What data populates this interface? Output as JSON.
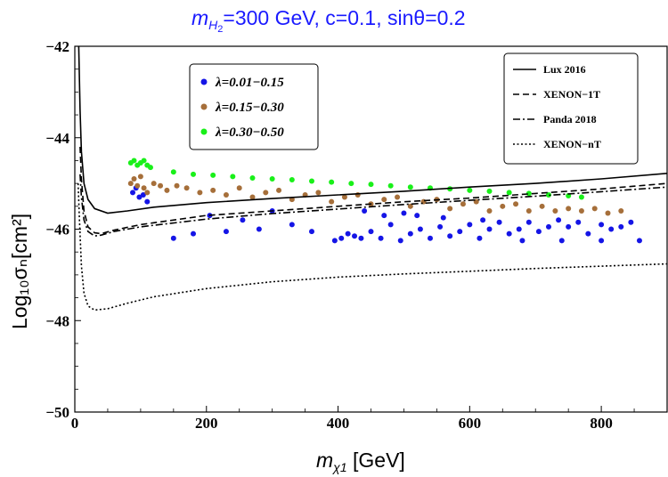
{
  "chart_data": {
    "type": "scatter",
    "title": {
      "prefix": "m",
      "sub": "H",
      "subsub": "2",
      "rest": "=300 GeV, c=0.1, sinθ=0.2"
    },
    "xlabel": {
      "main": "m",
      "sub": "χ1",
      "rest": " [GeV]"
    },
    "ylabel": "Log₁₀σₙ[cm²]",
    "xlim": [
      0,
      900
    ],
    "ylim": [
      -50,
      -42
    ],
    "xticks": [
      0,
      200,
      400,
      600,
      800
    ],
    "yticks": [
      -42,
      -44,
      -46,
      -48,
      -50
    ],
    "xtick_labels": [
      "0",
      "200",
      "400",
      "600",
      "800"
    ],
    "ytick_labels": [
      "−42",
      "−44",
      "−46",
      "−48",
      "−50"
    ],
    "scatter_legend": [
      {
        "label": "λ=0.01−0.15",
        "color": "#1515e6"
      },
      {
        "label": "λ=0.15−0.30",
        "color": "#a66f3a"
      },
      {
        "label": "λ=0.30−0.50",
        "color": "#19f019"
      }
    ],
    "line_legend": [
      {
        "label": "Lux 2016",
        "dash": "solid"
      },
      {
        "label": "XENON−1T",
        "dash": "dashed"
      },
      {
        "label": "Panda 2018",
        "dash": "dashdot"
      },
      {
        "label": "XENON−nT",
        "dash": "dotted"
      }
    ],
    "series": [
      {
        "name": "Lux 2016",
        "kind": "line",
        "dash": "solid",
        "x": [
          6,
          8,
          10,
          14,
          20,
          30,
          50,
          80,
          120,
          200,
          300,
          400,
          500,
          600,
          700,
          800,
          900
        ],
        "y": [
          -42.0,
          -43.4,
          -44.3,
          -45.0,
          -45.35,
          -45.55,
          -45.65,
          -45.6,
          -45.52,
          -45.42,
          -45.33,
          -45.25,
          -45.17,
          -45.08,
          -45.0,
          -44.9,
          -44.78
        ]
      },
      {
        "name": "XENON-1T",
        "kind": "line",
        "dash": "dashed",
        "x": [
          8,
          10,
          14,
          20,
          30,
          40,
          60,
          100,
          200,
          300,
          400,
          500,
          600,
          700,
          800,
          900
        ],
        "y": [
          -44.2,
          -44.9,
          -45.6,
          -45.95,
          -46.08,
          -46.1,
          -46.02,
          -45.9,
          -45.7,
          -45.6,
          -45.5,
          -45.4,
          -45.32,
          -45.22,
          -45.12,
          -45.0
        ]
      },
      {
        "name": "Panda 2018",
        "kind": "line",
        "dash": "dashdot",
        "x": [
          8,
          10,
          14,
          20,
          30,
          40,
          60,
          100,
          200,
          300,
          400,
          500,
          600,
          700,
          800,
          900
        ],
        "y": [
          -44.8,
          -45.3,
          -45.8,
          -46.05,
          -46.15,
          -46.13,
          -46.05,
          -45.95,
          -45.78,
          -45.66,
          -45.56,
          -45.46,
          -45.37,
          -45.28,
          -45.18,
          -45.08
        ]
      },
      {
        "name": "XENON-nT",
        "kind": "line",
        "dash": "dotted",
        "x": [
          5,
          7,
          10,
          14,
          20,
          30,
          50,
          80,
          120,
          200,
          300,
          400,
          500,
          600,
          700,
          800,
          900
        ],
        "y": [
          -45.0,
          -45.8,
          -46.8,
          -47.4,
          -47.68,
          -47.77,
          -47.74,
          -47.62,
          -47.48,
          -47.3,
          -47.15,
          -47.05,
          -46.98,
          -46.92,
          -46.86,
          -46.81,
          -46.76
        ]
      },
      {
        "name": "λ=0.01-0.15",
        "kind": "scatter",
        "color": "#1515e6",
        "x": [
          88,
          93,
          98,
          104,
          110,
          150,
          180,
          205,
          230,
          255,
          280,
          300,
          330,
          360,
          395,
          405,
          415,
          425,
          435,
          450,
          465,
          480,
          495,
          510,
          525,
          540,
          555,
          570,
          585,
          600,
          615,
          630,
          645,
          660,
          675,
          690,
          705,
          720,
          735,
          750,
          765,
          780,
          800,
          815,
          830,
          845,
          858,
          520,
          560,
          620,
          680,
          740,
          800,
          440,
          470,
          500
        ],
        "y": [
          -45.2,
          -45.1,
          -45.3,
          -45.25,
          -45.4,
          -46.2,
          -46.1,
          -45.7,
          -46.05,
          -45.8,
          -46.0,
          -45.6,
          -45.9,
          -46.05,
          -46.25,
          -46.2,
          -46.1,
          -46.15,
          -46.2,
          -46.05,
          -46.2,
          -45.9,
          -46.25,
          -46.1,
          -46.0,
          -46.2,
          -45.95,
          -46.15,
          -46.05,
          -45.9,
          -46.2,
          -46.0,
          -45.85,
          -46.1,
          -46.0,
          -45.85,
          -46.05,
          -45.95,
          -45.8,
          -45.95,
          -45.85,
          -46.1,
          -45.9,
          -46.0,
          -45.95,
          -45.85,
          -46.25,
          -45.7,
          -45.75,
          -45.8,
          -46.25,
          -46.25,
          -46.25,
          -45.6,
          -45.7,
          -45.65
        ]
      },
      {
        "name": "λ=0.15-0.30",
        "kind": "scatter",
        "color": "#a66f3a",
        "x": [
          85,
          90,
          95,
          100,
          105,
          110,
          120,
          130,
          140,
          155,
          170,
          190,
          210,
          230,
          250,
          270,
          290,
          310,
          330,
          350,
          370,
          390,
          410,
          430,
          450,
          470,
          490,
          510,
          530,
          550,
          570,
          590,
          610,
          630,
          650,
          670,
          690,
          710,
          730,
          750,
          770,
          790,
          810,
          830
        ],
        "y": [
          -45.0,
          -44.9,
          -45.05,
          -44.85,
          -45.1,
          -45.2,
          -45.0,
          -45.05,
          -45.15,
          -45.05,
          -45.1,
          -45.2,
          -45.15,
          -45.25,
          -45.1,
          -45.3,
          -45.2,
          -45.15,
          -45.35,
          -45.25,
          -45.2,
          -45.4,
          -45.3,
          -45.25,
          -45.45,
          -45.35,
          -45.3,
          -45.5,
          -45.4,
          -45.35,
          -45.55,
          -45.45,
          -45.4,
          -45.6,
          -45.5,
          -45.45,
          -45.6,
          -45.5,
          -45.6,
          -45.55,
          -45.6,
          -45.55,
          -45.65,
          -45.6
        ]
      },
      {
        "name": "λ=0.30-0.50",
        "kind": "scatter",
        "color": "#19f019",
        "x": [
          85,
          90,
          95,
          100,
          105,
          110,
          115,
          150,
          180,
          210,
          240,
          270,
          300,
          330,
          360,
          390,
          420,
          450,
          480,
          510,
          540,
          570,
          600,
          630,
          660,
          690,
          720,
          750,
          770
        ],
        "y": [
          -44.55,
          -44.5,
          -44.6,
          -44.55,
          -44.5,
          -44.6,
          -44.65,
          -44.75,
          -44.8,
          -44.82,
          -44.85,
          -44.88,
          -44.9,
          -44.92,
          -44.95,
          -44.97,
          -45.0,
          -45.02,
          -45.05,
          -45.08,
          -45.1,
          -45.12,
          -45.15,
          -45.17,
          -45.2,
          -45.22,
          -45.25,
          -45.27,
          -45.3
        ]
      }
    ]
  }
}
